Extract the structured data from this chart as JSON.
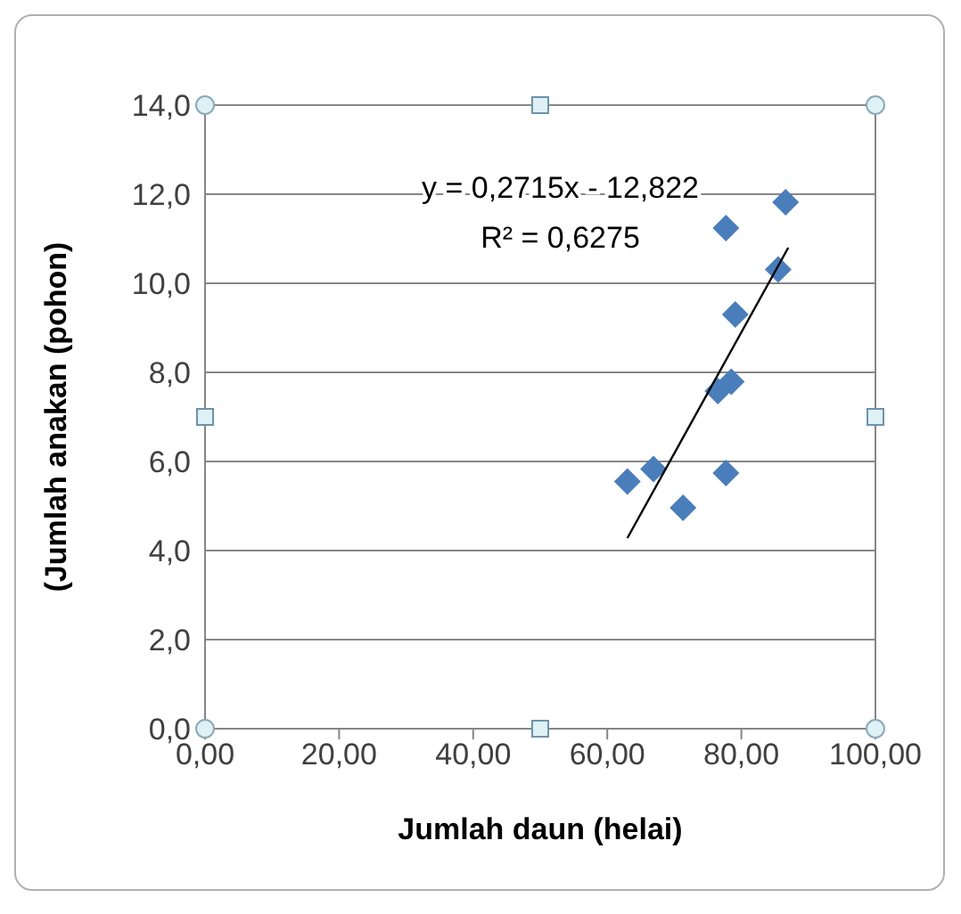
{
  "chart_data": {
    "type": "scatter",
    "xlabel": "Jumlah daun (helai)",
    "ylabel": "(Jumlah anakan (pohon)",
    "annotations": [
      "y = 0,2715x - 12,822",
      "R² = 0,6275"
    ],
    "series": [
      {
        "color": "#4a7ebb",
        "marker": "diamond",
        "x": [
          63.0,
          66.9,
          71.3,
          77.7,
          76.5,
          78.5,
          79.1,
          77.7,
          85.5,
          86.6
        ],
        "values": [
          5.55,
          5.83,
          4.96,
          5.74,
          7.58,
          7.79,
          9.3,
          11.24,
          10.31,
          11.82
        ]
      },
      {
        "type": "line",
        "color": "#000000",
        "marker": "none",
        "x": [
          63,
          87
        ],
        "values": [
          4.28,
          10.8
        ]
      }
    ],
    "xlim": [
      0,
      100
    ],
    "xticks": [
      {
        "value": 0,
        "label": "0,00"
      },
      {
        "value": 20,
        "label": "20,00"
      },
      {
        "value": 40,
        "label": "40,00"
      },
      {
        "value": 60,
        "label": "60,00"
      },
      {
        "value": 80,
        "label": "80,00"
      },
      {
        "value": 100,
        "label": "100,00"
      }
    ],
    "ylim": [
      0,
      14
    ],
    "yticks": [
      {
        "value": 0,
        "label": "0,0"
      },
      {
        "value": 2,
        "label": "2,0"
      },
      {
        "value": 4,
        "label": "4,0"
      },
      {
        "value": 6,
        "label": "6,0"
      },
      {
        "value": 8,
        "label": "8,0"
      },
      {
        "value": 10,
        "label": "10,0"
      },
      {
        "value": 12,
        "label": "12,0"
      },
      {
        "value": 14,
        "label": "14,0"
      }
    ],
    "grid": "y",
    "legend": false
  }
}
